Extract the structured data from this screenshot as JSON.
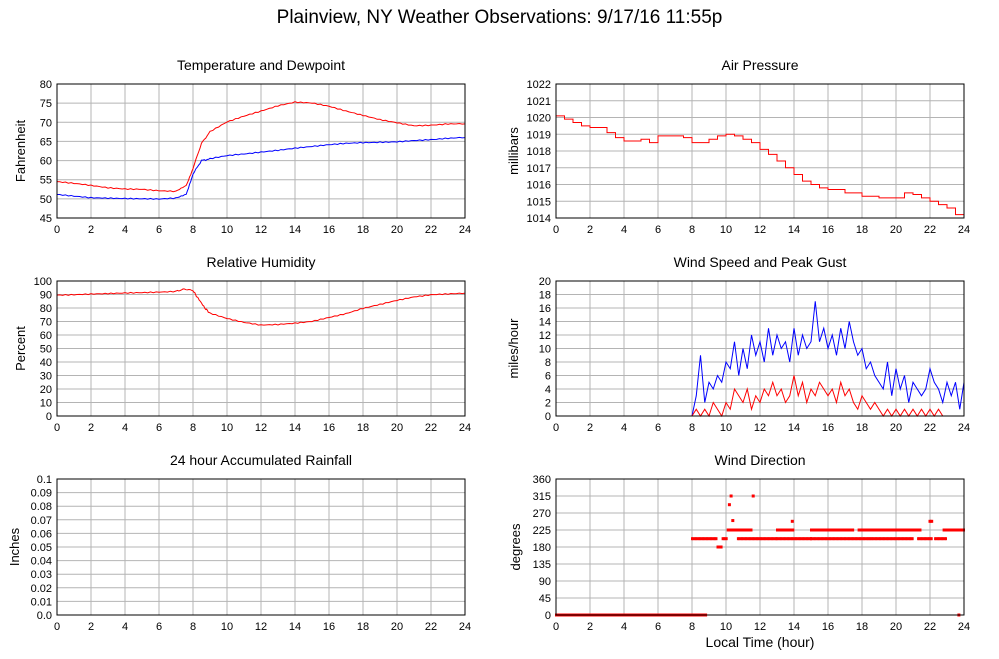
{
  "title": "Plainview, NY Weather Observations: 9/17/16 11:55p",
  "shared_xlabel": "Local Time (hour)",
  "colors": {
    "red": "#ff0000",
    "blue": "#0000ff",
    "grid": "#b4b4b4"
  },
  "chart_data": [
    {
      "id": "temp",
      "type": "line",
      "title": "Temperature and Dewpoint",
      "ylabel": "Fahrenheit",
      "xlim": [
        0,
        24
      ],
      "xticks": [
        0,
        2,
        4,
        6,
        8,
        10,
        12,
        14,
        16,
        18,
        20,
        22,
        24
      ],
      "ylim": [
        45,
        80
      ],
      "yticks": [
        45,
        50,
        55,
        60,
        65,
        70,
        75,
        80
      ],
      "grid": true,
      "series": [
        {
          "color": "#ff0000",
          "x": [
            0,
            1,
            2,
            3,
            4,
            5,
            6,
            7,
            7.6,
            8,
            8.5,
            9,
            10,
            11,
            12,
            13,
            14,
            15,
            16,
            17,
            18,
            19,
            20,
            21,
            22,
            23,
            24
          ],
          "y": [
            54.5,
            54.1,
            53.6,
            53.0,
            52.7,
            52.6,
            52.2,
            52.0,
            53.5,
            58,
            64.5,
            67.5,
            70,
            71.5,
            72.8,
            74.2,
            75.2,
            75,
            74.2,
            73,
            71.9,
            70.8,
            70,
            69.2,
            69.3,
            69.6,
            69.6
          ]
        },
        {
          "color": "#0000ff",
          "x": [
            0,
            1,
            2,
            3,
            4,
            5,
            6,
            7,
            7.6,
            8,
            8.5,
            9,
            10,
            11,
            12,
            13,
            14,
            15,
            16,
            17,
            18,
            19,
            20,
            21,
            22,
            23,
            24
          ],
          "y": [
            51.2,
            50.8,
            50.4,
            50.3,
            50.2,
            50.1,
            50.0,
            50.2,
            51.2,
            56.5,
            60,
            60.4,
            61.2,
            61.6,
            62.1,
            62.6,
            63.2,
            63.7,
            64.2,
            64.6,
            64.8,
            64.9,
            65.0,
            65.3,
            65.5,
            65.8,
            66.0
          ]
        }
      ]
    },
    {
      "id": "pressure",
      "type": "line",
      "title": "Air Pressure",
      "ylabel": "millibars",
      "xlim": [
        0,
        24
      ],
      "xticks": [
        0,
        2,
        4,
        6,
        8,
        10,
        12,
        14,
        16,
        18,
        20,
        22,
        24
      ],
      "ylim": [
        1014,
        1022
      ],
      "yticks": [
        1014,
        1015,
        1016,
        1017,
        1018,
        1019,
        1020,
        1021,
        1022
      ],
      "grid": true,
      "series": [
        {
          "color": "#ff0000",
          "step": true,
          "x": [
            0,
            0.5,
            1,
            1.5,
            2,
            3,
            3.5,
            4,
            4.5,
            5,
            5.5,
            6,
            7,
            7.5,
            8,
            8.5,
            9,
            9.5,
            10,
            10.5,
            11,
            11.5,
            12,
            12.5,
            13,
            13.5,
            14,
            14.5,
            15,
            15.5,
            16,
            17,
            18,
            19,
            19.5,
            20,
            20.5,
            21,
            21.5,
            22,
            22.5,
            23,
            23.5,
            24
          ],
          "y": [
            1020.1,
            1019.9,
            1019.7,
            1019.5,
            1019.4,
            1019.1,
            1018.8,
            1018.6,
            1018.6,
            1018.7,
            1018.5,
            1018.9,
            1018.9,
            1018.8,
            1018.5,
            1018.5,
            1018.7,
            1018.9,
            1019.0,
            1018.9,
            1018.7,
            1018.5,
            1018.1,
            1017.8,
            1017.4,
            1017.0,
            1016.6,
            1016.2,
            1016.0,
            1015.8,
            1015.7,
            1015.5,
            1015.3,
            1015.2,
            1015.2,
            1015.2,
            1015.5,
            1015.4,
            1015.2,
            1015.0,
            1014.8,
            1014.6,
            1014.2,
            1014.2
          ]
        }
      ]
    },
    {
      "id": "humidity",
      "type": "line",
      "title": "Relative Humidity",
      "ylabel": "Percent",
      "xlim": [
        0,
        24
      ],
      "xticks": [
        0,
        2,
        4,
        6,
        8,
        10,
        12,
        14,
        16,
        18,
        20,
        22,
        24
      ],
      "ylim": [
        0,
        100
      ],
      "yticks": [
        0,
        10,
        20,
        30,
        40,
        50,
        60,
        70,
        80,
        90,
        100
      ],
      "grid": true,
      "series": [
        {
          "color": "#ff0000",
          "x": [
            0,
            1,
            2,
            3,
            4,
            5,
            6,
            7,
            7.5,
            8,
            8.3,
            8.7,
            9,
            10,
            11,
            12,
            13,
            14,
            15,
            16,
            17,
            18,
            19,
            20,
            21,
            22,
            23,
            24
          ],
          "y": [
            89.5,
            90,
            90.6,
            91,
            91.5,
            91.7,
            92,
            92.4,
            94,
            93,
            87,
            80,
            76,
            72,
            69,
            67,
            67.5,
            68.5,
            70,
            73,
            76,
            80,
            83,
            86,
            88.5,
            90,
            90.5,
            91
          ]
        }
      ]
    },
    {
      "id": "wind",
      "type": "line",
      "title": "Wind Speed and Peak Gust",
      "ylabel": "miles/hour",
      "xlim": [
        0,
        24
      ],
      "xticks": [
        0,
        2,
        4,
        6,
        8,
        10,
        12,
        14,
        16,
        18,
        20,
        22,
        24
      ],
      "ylim": [
        0,
        20
      ],
      "yticks": [
        0,
        2,
        4,
        6,
        8,
        10,
        12,
        14,
        16,
        18,
        20
      ],
      "grid": true,
      "series": [
        {
          "color": "#0000ff",
          "x": [
            0,
            8,
            8.25,
            8.5,
            8.75,
            9,
            9.25,
            9.5,
            9.75,
            10,
            10.25,
            10.5,
            10.75,
            11,
            11.25,
            11.5,
            11.75,
            12,
            12.25,
            12.5,
            12.75,
            13,
            13.25,
            13.5,
            13.75,
            14,
            14.25,
            14.5,
            14.75,
            15,
            15.25,
            15.5,
            15.75,
            16,
            16.25,
            16.5,
            16.75,
            17,
            17.25,
            17.5,
            17.75,
            18,
            18.25,
            18.5,
            18.75,
            19,
            19.25,
            19.5,
            19.75,
            20,
            20.25,
            20.5,
            20.75,
            21,
            21.25,
            21.5,
            21.75,
            22,
            22.25,
            22.5,
            22.75,
            23,
            23.25,
            23.5,
            23.75,
            24
          ],
          "y": [
            0,
            0,
            3,
            9,
            2,
            5,
            4,
            6,
            5,
            8,
            7,
            11,
            6,
            10,
            7,
            12,
            9,
            11,
            8,
            13,
            9,
            12,
            10,
            11,
            8,
            13,
            9,
            12,
            10,
            11,
            17,
            11,
            13,
            10,
            12,
            9,
            13,
            10,
            14,
            11,
            9,
            10,
            7,
            8,
            6,
            5,
            4,
            8,
            3,
            7,
            4,
            6,
            2,
            5,
            4,
            3,
            4,
            7,
            5,
            4,
            2,
            5,
            3,
            5,
            1,
            5
          ]
        },
        {
          "color": "#ff0000",
          "x": [
            0,
            8,
            8.25,
            8.5,
            8.75,
            9,
            9.25,
            9.5,
            9.75,
            10,
            10.25,
            10.5,
            10.75,
            11,
            11.25,
            11.5,
            11.75,
            12,
            12.25,
            12.5,
            12.75,
            13,
            13.25,
            13.5,
            13.75,
            14,
            14.25,
            14.5,
            14.75,
            15,
            15.25,
            15.5,
            15.75,
            16,
            16.25,
            16.5,
            16.75,
            17,
            17.25,
            17.5,
            17.75,
            18,
            18.25,
            18.5,
            18.75,
            19,
            19.25,
            19.5,
            19.75,
            20,
            20.25,
            20.5,
            20.75,
            21,
            21.25,
            21.5,
            21.75,
            22,
            22.25,
            22.5,
            22.75,
            23,
            23.25,
            23.5,
            23.75,
            24
          ],
          "y": [
            0,
            0,
            1,
            0,
            1,
            0,
            2,
            1,
            0,
            2,
            1,
            4,
            3,
            2,
            4,
            1,
            3,
            2,
            4,
            3,
            5,
            3,
            4,
            2,
            3,
            6,
            3,
            5,
            2,
            4,
            3,
            5,
            4,
            3,
            4,
            2,
            5,
            3,
            4,
            2,
            1,
            3,
            2,
            1,
            2,
            1,
            0,
            1,
            0,
            1,
            0,
            1,
            0,
            1,
            0,
            1,
            0,
            1,
            0,
            1,
            0,
            0,
            0,
            0,
            0,
            0
          ]
        }
      ]
    },
    {
      "id": "rain",
      "type": "line",
      "title": "24 hour Accumulated Rainfall",
      "ylabel": "Inches",
      "xlim": [
        0,
        24
      ],
      "xticks": [
        0,
        2,
        4,
        6,
        8,
        10,
        12,
        14,
        16,
        18,
        20,
        22,
        24
      ],
      "ylim": [
        0,
        0.1
      ],
      "yticks": [
        "0.0",
        "0.01",
        "0.02",
        "0.03",
        "0.04",
        "0.05",
        "0.06",
        "0.07",
        "0.08",
        "0.09",
        "0.1"
      ],
      "grid": true,
      "series": [
        {
          "color": "#ff0000",
          "x": [
            0,
            24
          ],
          "y": [
            0,
            0
          ]
        }
      ]
    },
    {
      "id": "direction",
      "type": "scatter",
      "title": "Wind Direction",
      "ylabel": "degrees",
      "xlim": [
        0,
        24
      ],
      "xticks": [
        0,
        2,
        4,
        6,
        8,
        10,
        12,
        14,
        16,
        18,
        20,
        22,
        24
      ],
      "ylim": [
        0,
        360
      ],
      "yticks": [
        0,
        45,
        90,
        135,
        180,
        225,
        270,
        315,
        360
      ],
      "grid": true,
      "series": [
        {
          "color": "#ff0000",
          "x_start": 0,
          "x_end": 8.8,
          "step": 0.05,
          "value": 0
        },
        {
          "color": "#ff0000",
          "x_start": 8.0,
          "x_end": 9.5,
          "step": 0.08,
          "value": 202
        },
        {
          "color": "#ff0000",
          "x_start": 9.5,
          "x_end": 9.8,
          "step": 0.08,
          "value": 180
        },
        {
          "color": "#ff0000",
          "x_start": 9.8,
          "x_end": 10.1,
          "step": 0.08,
          "value": 202
        },
        {
          "color": "#ff0000",
          "x_start": 10.1,
          "x_end": 11.1,
          "step": 0.08,
          "value": 225
        },
        {
          "color": "#ff0000",
          "x_start": 10.7,
          "x_end": 13.0,
          "step": 0.08,
          "value": 202
        },
        {
          "color": "#ff0000",
          "x_start": 11.1,
          "x_end": 11.5,
          "step": 0.08,
          "value": 225
        },
        {
          "color": "#ff0000",
          "x_start": 13.0,
          "x_end": 14.0,
          "step": 0.08,
          "value": 225
        },
        {
          "color": "#ff0000",
          "x_start": 13.0,
          "x_end": 15.0,
          "step": 0.08,
          "value": 202
        },
        {
          "color": "#ff0000",
          "x_start": 15.0,
          "x_end": 17.5,
          "step": 0.08,
          "value": 225
        },
        {
          "color": "#ff0000",
          "x_start": 15.0,
          "x_end": 18.5,
          "step": 0.08,
          "value": 202
        },
        {
          "color": "#ff0000",
          "x_start": 17.8,
          "x_end": 20.0,
          "step": 0.08,
          "value": 225
        },
        {
          "color": "#ff0000",
          "x_start": 18.5,
          "x_end": 21.0,
          "step": 0.08,
          "value": 202
        },
        {
          "color": "#ff0000",
          "x_start": 20.0,
          "x_end": 21.5,
          "step": 0.08,
          "value": 225
        },
        {
          "color": "#ff0000",
          "x_start": 21.3,
          "x_end": 22.1,
          "step": 0.08,
          "value": 202
        },
        {
          "color": "#ff0000",
          "x_start": 22.3,
          "x_end": 23.0,
          "step": 0.08,
          "value": 202
        },
        {
          "color": "#ff0000",
          "x_start": 22.8,
          "x_end": 24.0,
          "step": 0.08,
          "value": 225
        }
      ],
      "points": [
        {
          "x": 10.2,
          "y": 292
        },
        {
          "x": 10.3,
          "y": 315
        },
        {
          "x": 10.4,
          "y": 250
        },
        {
          "x": 11.6,
          "y": 315
        },
        {
          "x": 13.9,
          "y": 248
        },
        {
          "x": 22.0,
          "y": 248
        },
        {
          "x": 22.1,
          "y": 248
        },
        {
          "x": 8.5,
          "y": 0
        },
        {
          "x": 8.8,
          "y": 0
        },
        {
          "x": 23.7,
          "y": 0
        }
      ]
    }
  ]
}
